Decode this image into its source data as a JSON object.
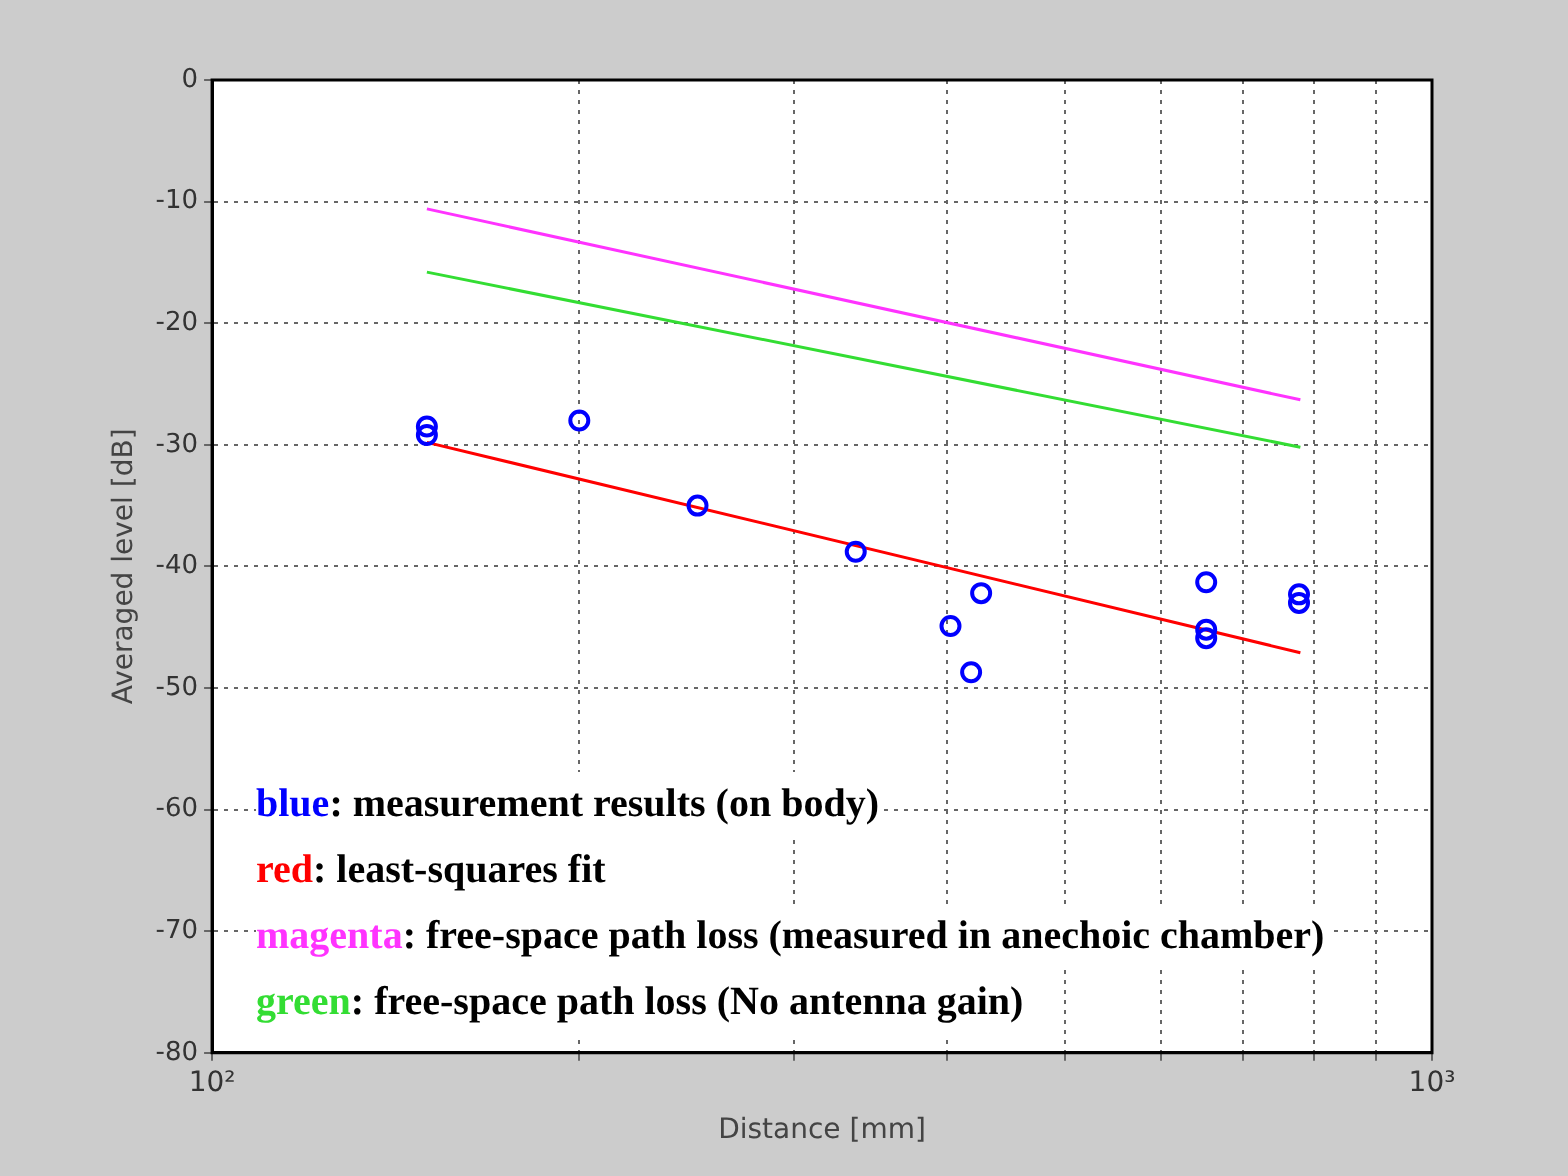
{
  "chart_data": {
    "type": "scatter",
    "xlabel": "Distance [mm]",
    "ylabel": "Averaged level [dB]",
    "log": "x",
    "grid": true,
    "xlim": [
      100,
      1000
    ],
    "xticks": [
      {
        "value": 100,
        "label": "10²"
      },
      {
        "value": 200,
        "label": null
      },
      {
        "value": 300,
        "label": null
      },
      {
        "value": 400,
        "label": null
      },
      {
        "value": 500,
        "label": null
      },
      {
        "value": 600,
        "label": null
      },
      {
        "value": 700,
        "label": null
      },
      {
        "value": 800,
        "label": null
      },
      {
        "value": 900,
        "label": null
      },
      {
        "value": 1000,
        "label": "10³"
      }
    ],
    "ylim": [
      -80,
      0
    ],
    "yticks": [
      -80,
      -70,
      -60,
      -50,
      -40,
      -30,
      -20,
      -10,
      0
    ],
    "series": [
      {
        "type": "scatter",
        "color": "#0000ff",
        "marker": "circle",
        "x": [
          150,
          150,
          200,
          250,
          337,
          403,
          419,
          427,
          653,
          653,
          653,
          778,
          778
        ],
        "values": [
          -28.5,
          -29.2,
          -28.0,
          -35.0,
          -38.8,
          -44.9,
          -48.7,
          -42.2,
          -41.3,
          -45.2,
          -45.9,
          -42.3,
          -43.0
        ]
      },
      {
        "type": "line",
        "color": "#ff0000",
        "marker": "none",
        "x": [
          150,
          780
        ],
        "values": [
          -29.8,
          -47.1
        ]
      },
      {
        "type": "line",
        "color": "#ff33ff",
        "marker": "none",
        "x": [
          150,
          780
        ],
        "values": [
          -10.6,
          -26.3
        ]
      },
      {
        "type": "line",
        "color": "#33dd33",
        "marker": "none",
        "x": [
          150,
          780
        ],
        "values": [
          -15.8,
          -30.2
        ]
      }
    ],
    "annotations": [
      "blue: measurement results (on body)",
      "red: least-squares fit",
      "magenta: free-space path loss (measured in anechoic chamber)",
      "green: free-space path loss (No antenna gain)"
    ]
  }
}
